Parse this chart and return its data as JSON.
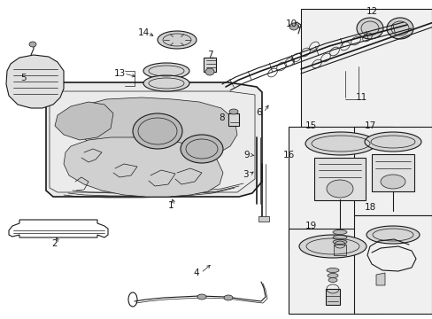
{
  "bg_color": "#ffffff",
  "line_color": "#1a1a1a",
  "gray_fill": "#d8d8d8",
  "light_fill": "#ebebeb",
  "figsize": [
    4.89,
    3.6
  ],
  "dpi": 100,
  "labels": {
    "1": [
      193,
      232,
      "↑",
      193,
      218
    ],
    "2": [
      62,
      276,
      "↑",
      62,
      263
    ],
    "3": [
      277,
      196,
      "→",
      288,
      196
    ],
    "4": [
      222,
      308,
      "↑",
      222,
      298
    ],
    "5": [
      27,
      88,
      "↓",
      27,
      98
    ],
    "6": [
      292,
      126,
      "↑",
      304,
      115
    ],
    "7": [
      236,
      62,
      "↓",
      236,
      72
    ],
    "8": [
      251,
      134,
      "→",
      263,
      134
    ],
    "9": [
      279,
      175,
      "→",
      290,
      175
    ],
    "10": [
      330,
      28,
      "→",
      342,
      35
    ],
    "11": [
      408,
      110,
      "",
      0,
      0
    ],
    "12": [
      421,
      14,
      "",
      0,
      0
    ],
    "13": [
      136,
      85,
      "{",
      155,
      90
    ],
    "14": [
      163,
      38,
      "→",
      175,
      42
    ],
    "15": [
      352,
      143,
      "",
      0,
      0
    ],
    "16": [
      327,
      175,
      "→",
      340,
      178
    ],
    "17": [
      418,
      143,
      "",
      0,
      0
    ],
    "18": [
      418,
      235,
      "",
      0,
      0
    ],
    "19": [
      352,
      255,
      "",
      0,
      0
    ]
  }
}
